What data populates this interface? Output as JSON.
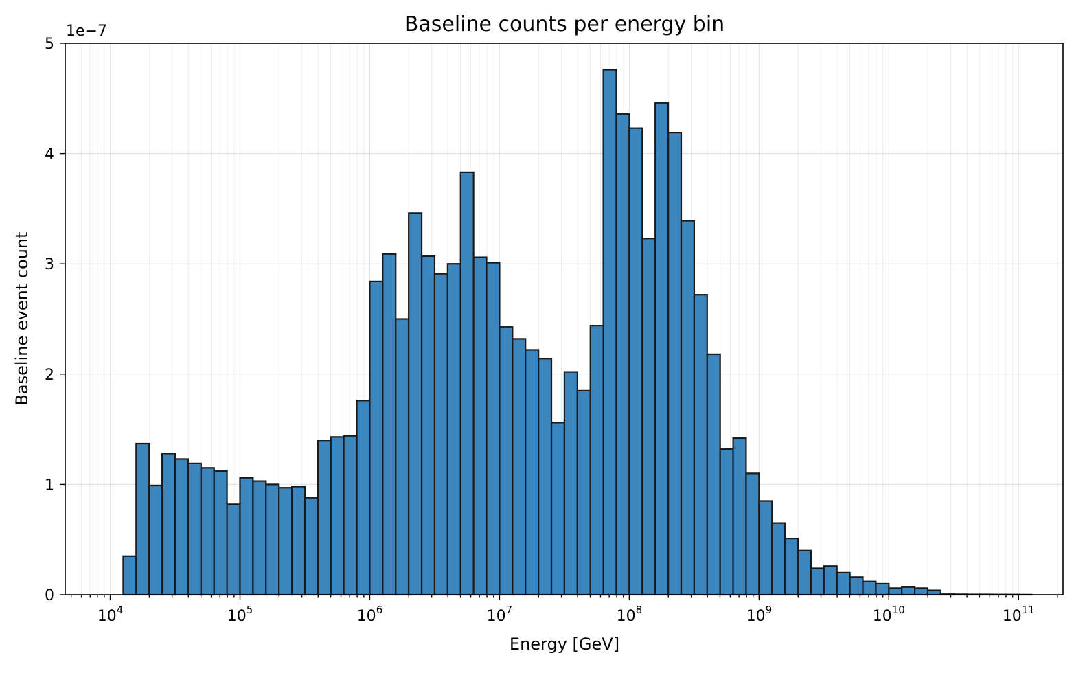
{
  "chart_data": {
    "type": "bar",
    "title": "Baseline counts per energy bin",
    "xlabel": "Energy [GeV]",
    "ylabel": "Baseline event count",
    "y_offset_label": "1e−7",
    "y_scale_factor": 1e-07,
    "x_scale": "log",
    "xlim": [
      4500.0,
      220000000000.0
    ],
    "ylim": [
      0,
      5
    ],
    "x_ticks": [
      {
        "base": "10",
        "exp": "4",
        "value": 10000.0
      },
      {
        "base": "10",
        "exp": "5",
        "value": 100000.0
      },
      {
        "base": "10",
        "exp": "6",
        "value": 1000000.0
      },
      {
        "base": "10",
        "exp": "7",
        "value": 10000000.0
      },
      {
        "base": "10",
        "exp": "8",
        "value": 100000000.0
      },
      {
        "base": "10",
        "exp": "9",
        "value": 1000000000.0
      },
      {
        "base": "10",
        "exp": "10",
        "value": 10000000000.0
      },
      {
        "base": "10",
        "exp": "11",
        "value": 100000000000.0
      }
    ],
    "y_ticks": [
      "0",
      "1",
      "2",
      "3",
      "4",
      "5"
    ],
    "grid": true,
    "bar_color": "#3c86bf",
    "edge_color": "#1a1a1a",
    "bin_edges_log10": [
      4.1,
      4.2,
      4.3,
      4.4,
      4.5,
      4.6,
      4.7,
      4.8,
      4.9,
      5.0,
      5.1,
      5.2,
      5.3,
      5.4,
      5.5,
      5.6,
      5.7,
      5.8,
      5.9,
      6.0,
      6.1,
      6.2,
      6.3,
      6.4,
      6.5,
      6.6,
      6.7,
      6.8,
      6.9,
      7.0,
      7.1,
      7.2,
      7.3,
      7.4,
      7.5,
      7.6,
      7.7,
      7.8,
      7.9,
      8.0,
      8.1,
      8.2,
      8.3,
      8.4,
      8.5,
      8.6,
      8.7,
      8.8,
      8.9,
      9.0,
      9.1,
      9.2,
      9.3,
      9.4,
      9.5,
      9.6,
      9.7,
      9.8,
      9.9,
      10.0,
      10.1,
      10.2,
      10.3,
      10.4,
      10.5,
      10.6,
      10.7,
      10.8,
      10.9,
      11.0,
      11.1
    ],
    "values": [
      0.35,
      1.37,
      0.99,
      1.28,
      1.23,
      1.19,
      1.15,
      1.12,
      0.82,
      1.06,
      1.03,
      1.0,
      0.97,
      0.98,
      0.88,
      1.4,
      1.43,
      1.44,
      1.76,
      2.84,
      3.09,
      2.5,
      3.46,
      3.07,
      2.91,
      3.0,
      3.83,
      3.06,
      3.01,
      2.43,
      2.32,
      2.22,
      2.14,
      1.56,
      2.02,
      1.85,
      2.44,
      4.76,
      4.36,
      4.23,
      3.23,
      4.46,
      4.19,
      3.39,
      2.72,
      2.18,
      1.32,
      1.42,
      1.1,
      0.85,
      0.65,
      0.51,
      0.4,
      0.24,
      0.26,
      0.2,
      0.16,
      0.12,
      0.1,
      0.06,
      0.07,
      0.06,
      0.04,
      0.005,
      0.004,
      0.003,
      0.003,
      0.002,
      0.002,
      0.001
    ]
  }
}
